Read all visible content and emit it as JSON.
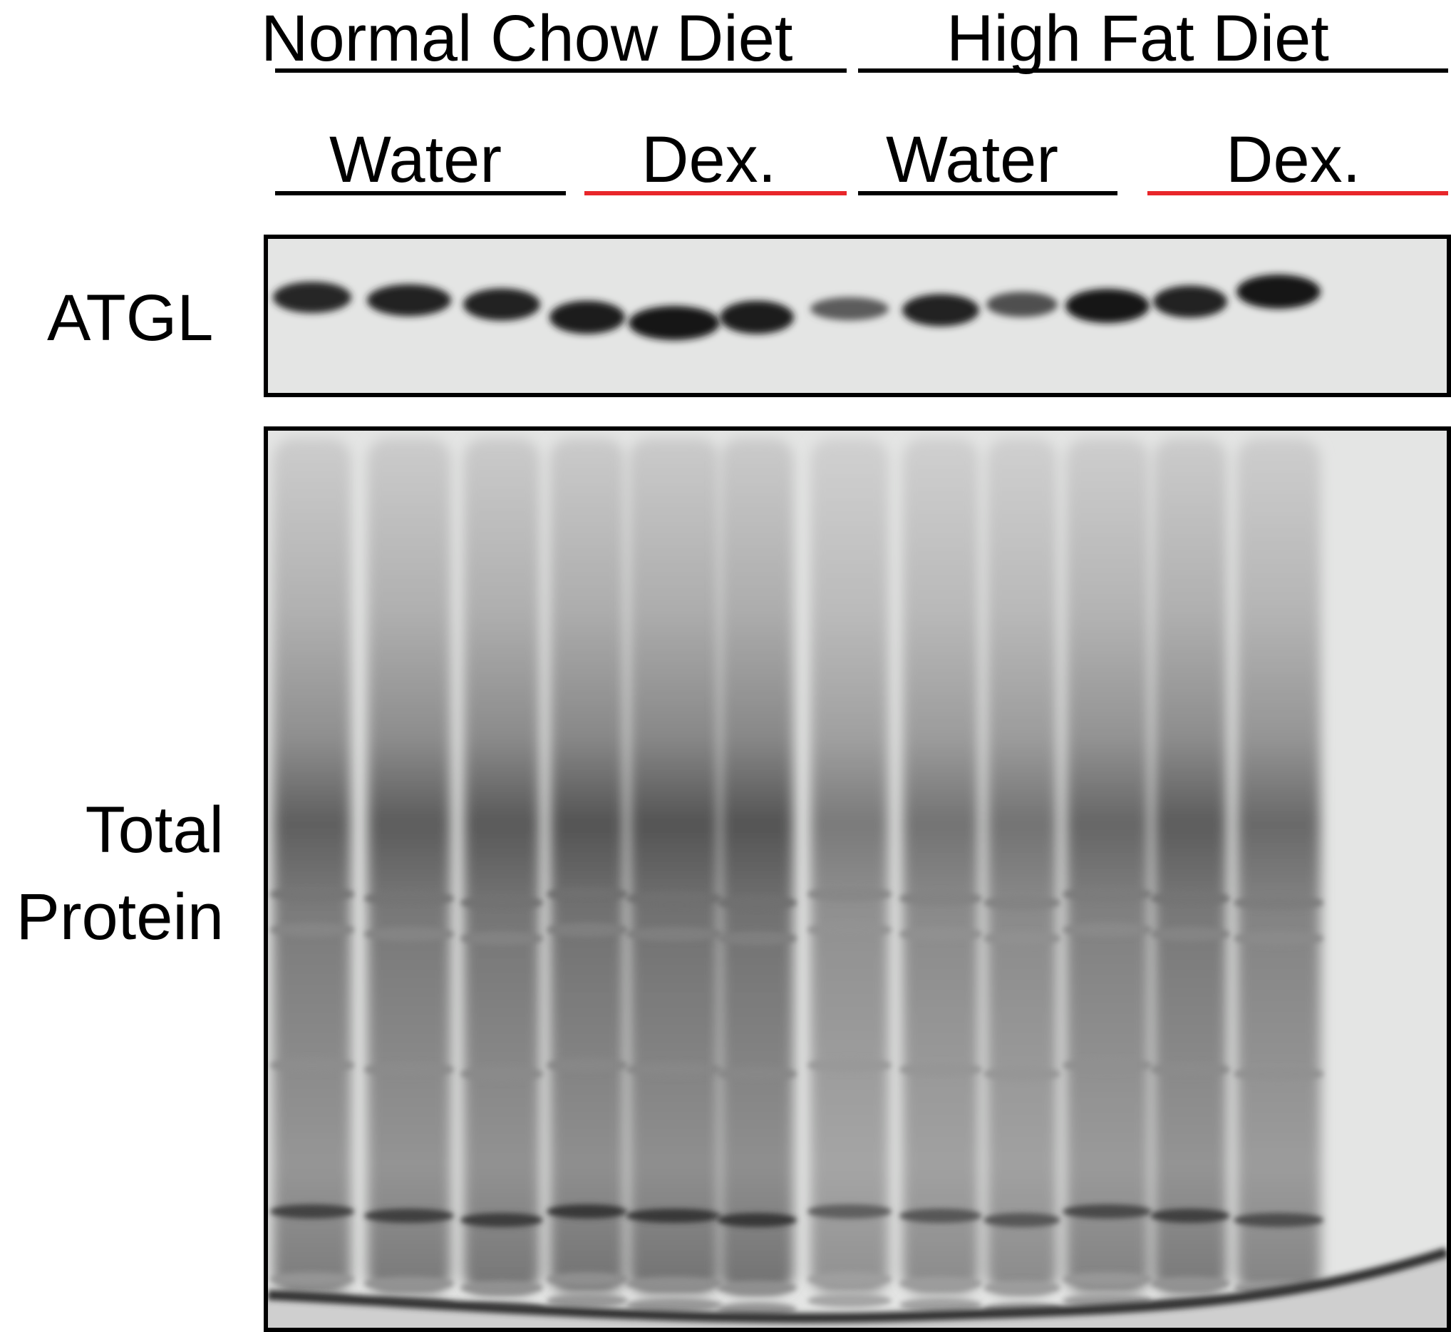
{
  "groups": [
    {
      "label": "Normal Chow Diet",
      "line_color": "#000000"
    },
    {
      "label": "High Fat Diet",
      "line_color": "#000000"
    }
  ],
  "treatments": [
    {
      "label": "Water",
      "line_color": "#000000"
    },
    {
      "label": "Dex.",
      "line_color": "#e8262a"
    },
    {
      "label": "Water",
      "line_color": "#000000"
    },
    {
      "label": "Dex.",
      "line_color": "#e8262a"
    }
  ],
  "rows": {
    "atgl": "ATGL",
    "total_protein_line1": "Total",
    "total_protein_line2": "Protein"
  },
  "colors": {
    "membrane_background": "#e4e5e4",
    "band_dark": "#111111",
    "control_line": "#000000",
    "dex_line": "#e8262a"
  },
  "blot": {
    "lane_count": 12,
    "atgl_band_intensity": [
      0.85,
      0.88,
      0.9,
      0.95,
      1.0,
      0.95,
      0.45,
      0.9,
      0.55,
      1.0,
      0.9,
      1.0
    ],
    "total_protein_intensity": [
      0.78,
      0.8,
      0.82,
      0.85,
      0.85,
      0.85,
      0.62,
      0.66,
      0.66,
      0.74,
      0.8,
      0.72
    ]
  }
}
